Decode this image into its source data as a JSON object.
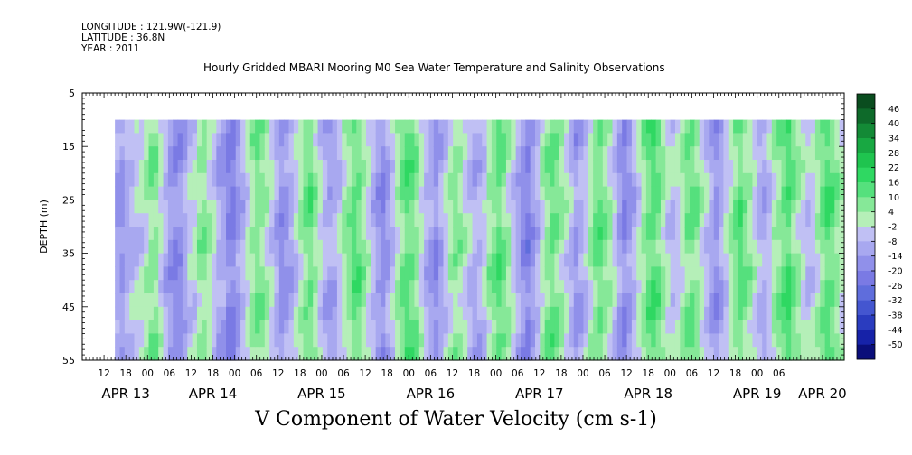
{
  "header": {
    "longitude": "LONGITUDE : 121.9W(-121.9)",
    "latitude": "LATITUDE : 36.8N",
    "year": "YEAR : 2011"
  },
  "chart_data": {
    "type": "heatmap",
    "title": "Hourly Gridded MBARI Mooring M0 Sea Water Temperature and Salinity Observations",
    "subtitle": "V Component of Water Velocity (cm s-1)",
    "ylabel": "DEPTH (m)",
    "xlabel": "",
    "ylim": [
      55,
      5
    ],
    "y_ticks": [
      5,
      15,
      25,
      35,
      45,
      55
    ],
    "data_depth_range": [
      10,
      55
    ],
    "hour_ticks": [
      "12",
      "18",
      "00",
      "06",
      "12",
      "18",
      "00",
      "06",
      "12",
      "18",
      "00",
      "06",
      "12",
      "18",
      "00",
      "06",
      "12",
      "18",
      "00",
      "06",
      "12",
      "18",
      "00",
      "06",
      "12",
      "18",
      "00",
      "06",
      "12",
      "18",
      "00",
      "06"
    ],
    "date_labels": [
      "APR 13",
      "APR 14",
      "APR 15",
      "APR 16",
      "APR 17",
      "APR 18",
      "APR 19",
      "APR 20"
    ],
    "date_label_hours": [
      18,
      42,
      72,
      102,
      132,
      162,
      192,
      210
    ],
    "x_range_hours": [
      6,
      216
    ],
    "data_start_hour": 15,
    "colorbar": {
      "levels": [
        "46",
        "40",
        "34",
        "28",
        "22",
        "16",
        "10",
        "4",
        "-2",
        "-8",
        "-14",
        "-20",
        "-26",
        "-32",
        "-38",
        "-44",
        "-50"
      ],
      "colors": [
        "#0a4d1f",
        "#0e6a2a",
        "#138a36",
        "#18a842",
        "#1fc44f",
        "#2fd862",
        "#55e07d",
        "#86e898",
        "#b5efb8",
        "#c0c0f4",
        "#a8a8f0",
        "#9090ea",
        "#7a7ae4",
        "#5f6ddc",
        "#4456d0",
        "#2a3cbf",
        "#1622a8",
        "#0a0e7a"
      ]
    },
    "field_note_colors": {
      "blue_strong": "#6f7fe6",
      "blue_mid": "#95a2f0",
      "blue_light": "#aab3f4",
      "green_light": "#9ceab0",
      "green_mid": "#6ce38c",
      "green_strong": "#40d86e"
    },
    "column_values": [
      -12,
      -14,
      -10,
      -8,
      -4,
      -2,
      2,
      6,
      6,
      -2,
      -8,
      -14,
      -18,
      -16,
      -10,
      -4,
      -2,
      4,
      6,
      2,
      -4,
      -10,
      -12,
      -18,
      -20,
      -14,
      -8,
      -2,
      4,
      8,
      6,
      2,
      -4,
      -10,
      -16,
      -14,
      -10,
      -4,
      2,
      8,
      10,
      4,
      -2,
      -8,
      -12,
      -10,
      -4,
      2,
      6,
      12,
      10,
      4,
      -2,
      -8,
      -14,
      -18,
      -12,
      -6,
      2,
      8,
      12,
      10,
      6,
      -2,
      -8,
      -12,
      -16,
      -10,
      -4,
      2,
      6,
      4,
      -2,
      -6,
      -10,
      -8,
      -4,
      4,
      8,
      12,
      8,
      2,
      -4,
      -10,
      -16,
      -20,
      -14,
      -8,
      0,
      6,
      10,
      8,
      4,
      -2,
      -8,
      -14,
      -10,
      -6,
      2,
      8,
      10,
      6,
      2,
      -4,
      -12,
      -18,
      -14,
      -8,
      -2,
      4,
      10,
      14,
      10,
      4,
      -2,
      -6,
      -4,
      2,
      8,
      10,
      6,
      0,
      -6,
      -12,
      -16,
      -10,
      -4,
      2,
      8,
      12,
      8,
      4,
      -2,
      -8,
      -10,
      -6,
      2,
      6,
      10,
      14,
      8,
      4,
      -2,
      -6,
      -4,
      2,
      8,
      12,
      10,
      6,
      0
    ]
  }
}
